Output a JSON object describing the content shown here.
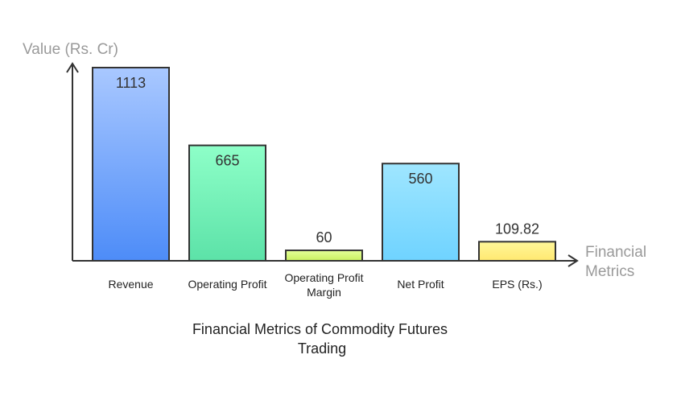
{
  "chart_data": {
    "type": "bar",
    "title_lines": [
      "Financial Metrics of Commodity Futures",
      "Trading"
    ],
    "ylabel": "Value (Rs. Cr)",
    "xlabel_lines": [
      "Financial",
      "Metrics"
    ],
    "categories": [
      [
        "Revenue"
      ],
      [
        "Operating Profit"
      ],
      [
        "Operating Profit",
        "Margin"
      ],
      [
        "Net Profit"
      ],
      [
        "EPS (Rs.)"
      ]
    ],
    "values": [
      1113,
      665,
      60,
      560,
      109.82
    ],
    "value_labels": [
      "1113",
      "665",
      "60",
      "560",
      "109.82"
    ],
    "ylim": [
      0,
      1113
    ],
    "grid": false,
    "colors": [
      [
        "#a9c8ff",
        "#4d8cf8"
      ],
      [
        "#8effc8",
        "#5ce2a8"
      ],
      [
        "#e4ff9a",
        "#c8f060"
      ],
      [
        "#9fe6ff",
        "#6fd3ff"
      ],
      [
        "#fff79a",
        "#ffe870"
      ]
    ]
  }
}
